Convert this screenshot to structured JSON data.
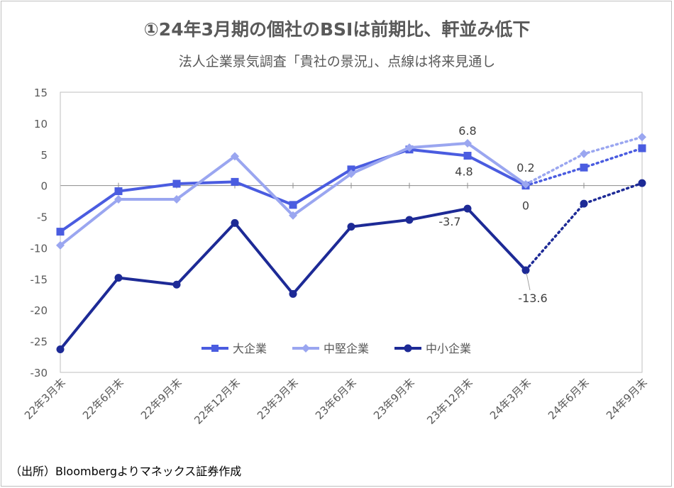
{
  "title": "①24年3月期の個社のBSIは前期比、軒並み低下",
  "subtitle": "法人企業景気調査「貴社の景況」、点線は将来見通し",
  "source": "（出所）Bloombergよりマネックス証券作成",
  "chart_data": {
    "type": "line",
    "categories": [
      "22年3月末",
      "22年6月末",
      "22年9月末",
      "22年12月末",
      "23年3月末",
      "23年6月末",
      "23年9月末",
      "23年12月末",
      "24年3月末",
      "24年6月末",
      "24年9月末"
    ],
    "ylim": [
      -30,
      15
    ],
    "yticks": [
      15,
      10,
      5,
      0,
      -5,
      -10,
      -15,
      -20,
      -25,
      -30
    ],
    "ytick_labels": [
      "15",
      "10",
      "5",
      "0",
      "-5",
      "-10",
      "-15",
      "-20",
      "-25",
      "-30"
    ],
    "forecast_start_index": 8,
    "legend_position": "bottom-center",
    "series": [
      {
        "name": "大企業",
        "color": "#4a5ce0",
        "marker": "square",
        "values": [
          -7.4,
          -0.9,
          0.3,
          0.6,
          -3.1,
          2.6,
          5.8,
          4.8,
          0.0,
          2.9,
          6.0
        ]
      },
      {
        "name": "中堅企業",
        "color": "#9aa6f0",
        "marker": "diamond",
        "values": [
          -9.6,
          -2.2,
          -2.2,
          4.7,
          -4.8,
          1.9,
          6.1,
          6.8,
          0.2,
          5.1,
          7.8
        ]
      },
      {
        "name": "中小企業",
        "color": "#1d2a96",
        "marker": "circle",
        "values": [
          -26.3,
          -14.8,
          -15.9,
          -6.0,
          -17.4,
          -6.6,
          -5.5,
          -3.7,
          -13.6,
          -2.9,
          0.4
        ]
      }
    ],
    "annotations": [
      "6.8",
      "4.8",
      "0.2",
      "0",
      "-3.7",
      "-13.6"
    ]
  }
}
